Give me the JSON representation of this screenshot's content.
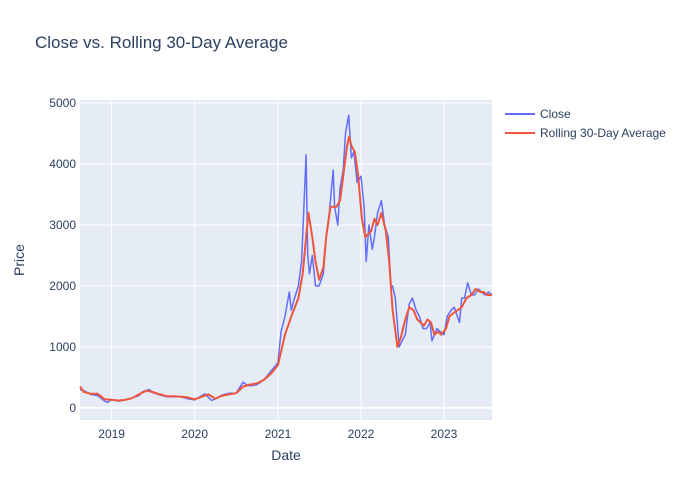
{
  "chart_data": {
    "type": "line",
    "title": "Close vs. Rolling 30-Day Average",
    "xlabel": "Date",
    "ylabel": "Price",
    "xlim": [
      "2018-08-15",
      "2023-07-31"
    ],
    "ylim": [
      -200,
      5050
    ],
    "x_ticks": [
      "2019",
      "2020",
      "2021",
      "2022",
      "2023"
    ],
    "y_ticks": [
      0,
      1000,
      2000,
      3000,
      4000,
      5000
    ],
    "grid": true,
    "legend_position": "top-right, outside plot",
    "series": [
      {
        "name": "Close",
        "color": "#636efa",
        "x": [
          "2018-08-15",
          "2018-09-01",
          "2018-10-01",
          "2018-11-01",
          "2018-12-01",
          "2018-12-15",
          "2019-01-01",
          "2019-02-01",
          "2019-03-01",
          "2019-04-01",
          "2019-05-01",
          "2019-05-15",
          "2019-06-15",
          "2019-07-01",
          "2019-08-01",
          "2019-09-01",
          "2019-10-01",
          "2019-11-01",
          "2019-12-01",
          "2020-01-01",
          "2020-02-15",
          "2020-03-15",
          "2020-04-01",
          "2020-05-01",
          "2020-06-01",
          "2020-07-01",
          "2020-08-01",
          "2020-08-15",
          "2020-09-01",
          "2020-10-01",
          "2020-11-01",
          "2020-12-01",
          "2021-01-01",
          "2021-01-15",
          "2021-02-01",
          "2021-02-20",
          "2021-03-01",
          "2021-03-15",
          "2021-04-01",
          "2021-04-15",
          "2021-05-05",
          "2021-05-12",
          "2021-05-20",
          "2021-06-01",
          "2021-06-15",
          "2021-07-01",
          "2021-07-20",
          "2021-08-01",
          "2021-08-15",
          "2021-09-01",
          "2021-09-07",
          "2021-09-21",
          "2021-10-01",
          "2021-10-15",
          "2021-10-25",
          "2021-11-08",
          "2021-11-20",
          "2021-12-01",
          "2021-12-15",
          "2022-01-01",
          "2022-01-15",
          "2022-01-24",
          "2022-02-05",
          "2022-02-20",
          "2022-03-01",
          "2022-03-15",
          "2022-04-01",
          "2022-04-15",
          "2022-05-01",
          "2022-05-12",
          "2022-05-20",
          "2022-06-01",
          "2022-06-18",
          "2022-07-01",
          "2022-07-15",
          "2022-08-01",
          "2022-08-15",
          "2022-09-01",
          "2022-09-15",
          "2022-10-01",
          "2022-10-15",
          "2022-11-01",
          "2022-11-09",
          "2022-11-20",
          "2022-12-01",
          "2022-12-15",
          "2023-01-01",
          "2023-01-15",
          "2023-02-01",
          "2023-02-15",
          "2023-03-10",
          "2023-03-20",
          "2023-04-01",
          "2023-04-15",
          "2023-05-01",
          "2023-05-15",
          "2023-06-01",
          "2023-06-15",
          "2023-07-01",
          "2023-07-15",
          "2023-07-31"
        ],
        "y": [
          300,
          280,
          220,
          200,
          110,
          90,
          140,
          110,
          130,
          160,
          200,
          260,
          300,
          250,
          210,
          180,
          180,
          180,
          150,
          130,
          230,
          120,
          150,
          210,
          240,
          240,
          420,
          380,
          360,
          380,
          460,
          600,
          740,
          1250,
          1500,
          1900,
          1600,
          1800,
          2000,
          2400,
          4150,
          2500,
          2200,
          2500,
          2000,
          2000,
          2200,
          2800,
          3200,
          3900,
          3300,
          3000,
          3600,
          3900,
          4500,
          4800,
          4100,
          4200,
          3700,
          3800,
          3300,
          2400,
          3000,
          2600,
          2800,
          3200,
          3400,
          3000,
          2800,
          2000,
          2000,
          1800,
          1000,
          1100,
          1200,
          1700,
          1800,
          1600,
          1500,
          1300,
          1300,
          1400,
          1100,
          1200,
          1300,
          1250,
          1200,
          1500,
          1600,
          1650,
          1400,
          1800,
          1800,
          2050,
          1850,
          1850,
          1950,
          1900,
          1850,
          1900,
          1850
        ]
      },
      {
        "name": "Rolling 30-Day Average",
        "color": "#ef553b",
        "x": [
          "2018-08-15",
          "2018-09-01",
          "2018-10-01",
          "2018-11-01",
          "2018-12-01",
          "2019-01-01",
          "2019-02-01",
          "2019-03-01",
          "2019-04-01",
          "2019-05-01",
          "2019-06-01",
          "2019-07-01",
          "2019-08-01",
          "2019-09-01",
          "2019-10-01",
          "2019-11-01",
          "2019-12-01",
          "2020-01-01",
          "2020-02-01",
          "2020-03-01",
          "2020-04-01",
          "2020-05-01",
          "2020-06-01",
          "2020-07-01",
          "2020-08-01",
          "2020-09-01",
          "2020-10-01",
          "2020-11-01",
          "2020-12-01",
          "2021-01-01",
          "2021-02-01",
          "2021-03-01",
          "2021-04-01",
          "2021-04-20",
          "2021-05-15",
          "2021-06-01",
          "2021-06-15",
          "2021-07-01",
          "2021-07-20",
          "2021-08-01",
          "2021-08-20",
          "2021-09-15",
          "2021-10-01",
          "2021-10-15",
          "2021-11-01",
          "2021-11-10",
          "2021-11-20",
          "2021-12-05",
          "2021-12-20",
          "2022-01-05",
          "2022-01-20",
          "2022-02-01",
          "2022-02-15",
          "2022-03-01",
          "2022-03-15",
          "2022-04-01",
          "2022-04-20",
          "2022-05-05",
          "2022-05-20",
          "2022-06-10",
          "2022-06-25",
          "2022-07-15",
          "2022-08-01",
          "2022-08-20",
          "2022-09-05",
          "2022-09-20",
          "2022-10-05",
          "2022-10-20",
          "2022-11-05",
          "2022-11-20",
          "2022-12-05",
          "2022-12-20",
          "2023-01-10",
          "2023-01-25",
          "2023-02-10",
          "2023-03-01",
          "2023-03-20",
          "2023-04-10",
          "2023-05-01",
          "2023-05-20",
          "2023-06-10",
          "2023-06-25",
          "2023-07-10",
          "2023-07-31"
        ],
        "y": [
          350,
          260,
          230,
          230,
          140,
          130,
          120,
          130,
          160,
          220,
          280,
          260,
          220,
          190,
          190,
          180,
          170,
          140,
          180,
          220,
          150,
          200,
          220,
          240,
          350,
          380,
          400,
          460,
          560,
          700,
          1200,
          1500,
          1800,
          2200,
          3200,
          2800,
          2400,
          2100,
          2300,
          2800,
          3300,
          3300,
          3400,
          3800,
          4300,
          4450,
          4300,
          4200,
          3800,
          3100,
          2800,
          2850,
          2900,
          3100,
          3000,
          3200,
          2900,
          2400,
          1600,
          1000,
          1150,
          1450,
          1650,
          1600,
          1450,
          1400,
          1350,
          1450,
          1400,
          1200,
          1250,
          1200,
          1300,
          1500,
          1550,
          1600,
          1650,
          1800,
          1850,
          1950,
          1900,
          1900,
          1850,
          1850
        ]
      }
    ]
  }
}
